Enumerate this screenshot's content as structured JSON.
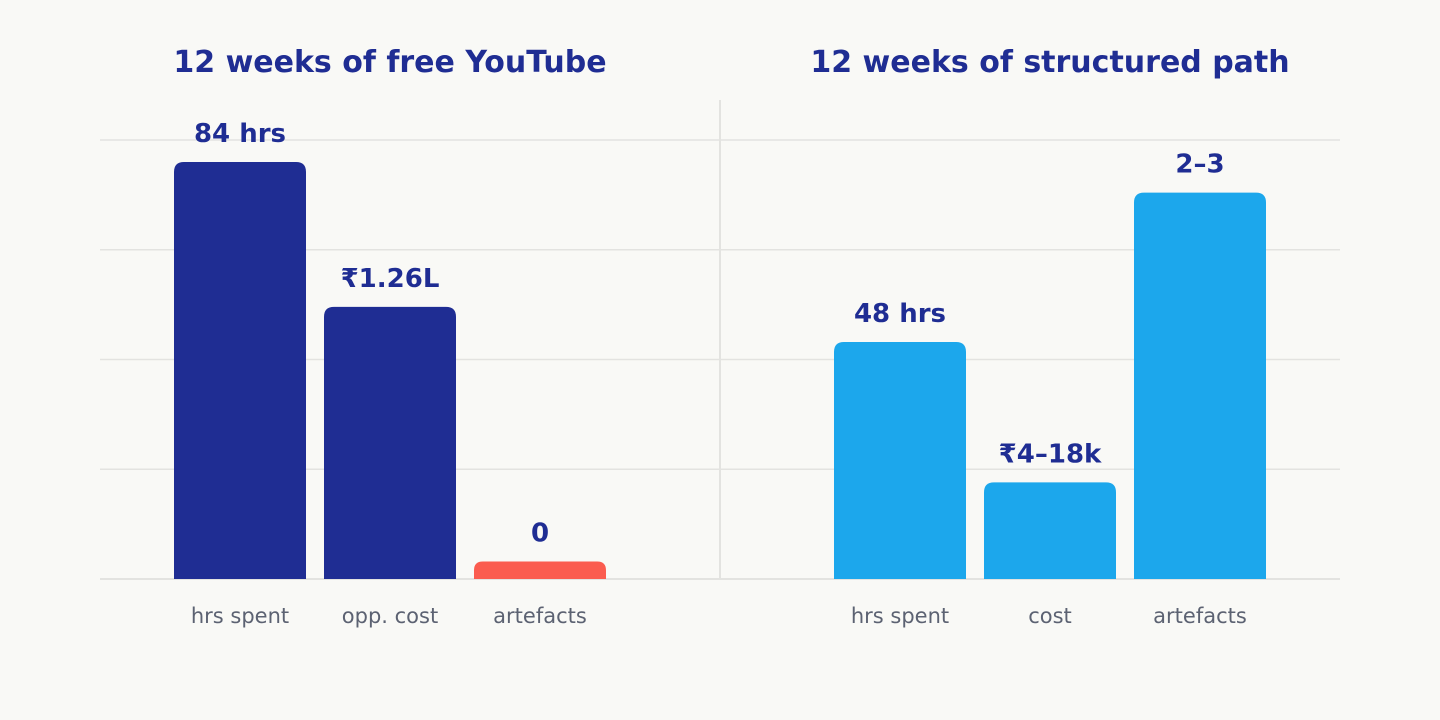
{
  "colors": {
    "background": "#f9f9f6",
    "title": "#1f2d93",
    "value_label": "#1f2d93",
    "category_label": "#5c6272",
    "grid": "#e3e3e0",
    "divider": "#e3e3e0",
    "navy": "#1f2d93",
    "sky": "#1ca7ec",
    "coral": "#fb5c4f"
  },
  "chart_data": [
    {
      "type": "bar",
      "title": "12 weeks of free YouTube",
      "xlabel": "",
      "ylabel": "",
      "categories": [
        "hrs spent",
        "opp. cost",
        "artefacts"
      ],
      "value_labels": [
        "84 hrs",
        "₹1.26L",
        "0"
      ],
      "values": [
        0.95,
        0.62,
        0.04
      ],
      "bar_colors": [
        "#1f2d93",
        "#1f2d93",
        "#fb5c4f"
      ],
      "ylim": [
        0,
        1
      ],
      "grid": true,
      "yaxis_ticks_shown": false
    },
    {
      "type": "bar",
      "title": "12 weeks of structured path",
      "xlabel": "",
      "ylabel": "",
      "categories": [
        "hrs spent",
        "cost",
        "artefacts"
      ],
      "value_labels": [
        "48 hrs",
        "₹4–18k",
        "2–3"
      ],
      "values": [
        0.54,
        0.22,
        0.88
      ],
      "bar_colors": [
        "#1ca7ec",
        "#1ca7ec",
        "#1ca7ec"
      ],
      "ylim": [
        0,
        1
      ],
      "grid": true,
      "yaxis_ticks_shown": false
    }
  ]
}
